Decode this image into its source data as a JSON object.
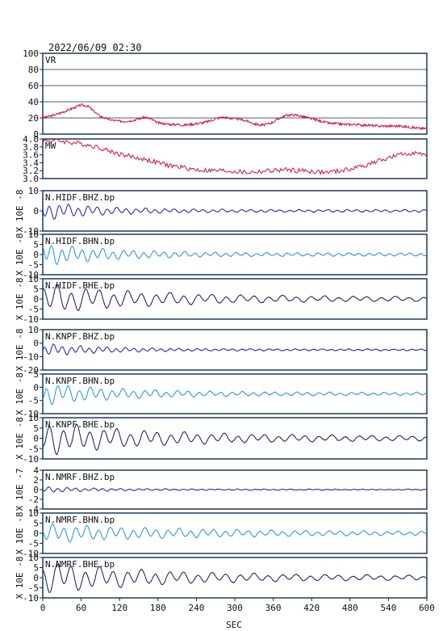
{
  "chart_data": {
    "type": "line",
    "title": "2022/06/09 02:30",
    "xlabel": "SEC",
    "xlim": [
      0,
      600
    ],
    "xticks": [
      "0",
      "60",
      "120",
      "180",
      "240",
      "300",
      "360",
      "420",
      "480",
      "540",
      "600"
    ],
    "colors": {
      "vr": "#d0103a",
      "mw": "#d0103a",
      "bhz": "#1a1aa8",
      "bhn": "#1f8fd6",
      "bhe": "#14145c",
      "frame": "#0b2c4a"
    },
    "panels": [
      {
        "id": "vr",
        "label": "VR",
        "ylabel": "",
        "ylim": [
          0,
          100
        ],
        "yticks": [
          "100",
          "80",
          "60",
          "40",
          "20",
          "0"
        ],
        "grid": true,
        "color": "vr",
        "kind": "vr"
      },
      {
        "id": "mw",
        "label": "MW",
        "ylabel": "",
        "ylim": [
          3.0,
          4.0
        ],
        "yticks": [
          "4.0",
          "3.8",
          "3.6",
          "3.4",
          "3.2",
          "3.0"
        ],
        "grid": false,
        "color": "mw",
        "kind": "mw"
      },
      {
        "id": "hidf_bhz",
        "label": "N.HIDF.BHZ.bp",
        "ylabel": "X 10E -8",
        "yticks": [
          "10",
          "0",
          "-10"
        ],
        "grid": false,
        "color": "bhz",
        "amp": 0.45,
        "decay": 0.011,
        "period": 15,
        "seed": 1
      },
      {
        "id": "hidf_bhn",
        "label": "N.HIDF.BHN.bp",
        "ylabel": "X 10E -8",
        "yticks": [
          "10",
          "5",
          "0",
          "-5",
          "-10"
        ],
        "grid": false,
        "color": "bhn",
        "amp": 0.55,
        "decay": 0.009,
        "period": 16,
        "seed": 2
      },
      {
        "id": "hidf_bhe",
        "label": "N.HIDF.BHE.bp",
        "ylabel": "X 10E -8",
        "yticks": [
          "10",
          "5",
          "0",
          "-5",
          "-10"
        ],
        "grid": false,
        "color": "bhe",
        "amp": 0.75,
        "decay": 0.006,
        "period": 22,
        "seed": 3
      },
      {
        "id": "knpf_bhz",
        "label": "N.KNPF.BHZ.bp",
        "ylabel": "X 10E -8",
        "yticks": [
          "10",
          "0",
          "-10",
          "-20"
        ],
        "grid": false,
        "color": "bhz",
        "amp": 0.3,
        "decay": 0.01,
        "period": 14,
        "seed": 4
      },
      {
        "id": "knpf_bhn",
        "label": "N.KNPF.BHN.bp",
        "ylabel": "X 10E -8",
        "yticks": [
          "5",
          "0",
          "-5",
          "-10"
        ],
        "grid": false,
        "color": "bhn",
        "amp": 0.55,
        "decay": 0.008,
        "period": 17,
        "seed": 5
      },
      {
        "id": "knpf_bhe",
        "label": "N.KNPF.BHE.bp",
        "ylabel": "X 10E -8",
        "yticks": [
          "10",
          "5",
          "0",
          "-5",
          "-10"
        ],
        "grid": false,
        "color": "bhe",
        "amp": 0.8,
        "decay": 0.006,
        "period": 21,
        "seed": 6
      },
      {
        "id": "nmrf_bhz",
        "label": "N.NMRF.BHZ.bp",
        "ylabel": "X 10E -7",
        "yticks": [
          "4",
          "2",
          "0",
          "-2",
          "-4"
        ],
        "grid": false,
        "color": "bhz",
        "amp": 0.15,
        "decay": 0.01,
        "period": 14,
        "seed": 7
      },
      {
        "id": "nmrf_bhn",
        "label": "N.NMRF.BHN.bp",
        "ylabel": "X 10E -8",
        "yticks": [
          "10",
          "5",
          "0",
          "-5",
          "-10"
        ],
        "grid": false,
        "color": "bhn",
        "amp": 0.45,
        "decay": 0.004,
        "period": 18,
        "seed": 8
      },
      {
        "id": "nmrf_bhe",
        "label": "N.NMRF.BHE.bp",
        "ylabel": "X 10E -8",
        "yticks": [
          "10",
          "5",
          "0",
          "-5",
          "-10"
        ],
        "grid": false,
        "color": "bhe",
        "amp": 0.8,
        "decay": 0.006,
        "period": 22,
        "seed": 9
      }
    ],
    "vr_values": [
      [
        0,
        20
      ],
      [
        10,
        22
      ],
      [
        20,
        24
      ],
      [
        30,
        27
      ],
      [
        40,
        30
      ],
      [
        50,
        33
      ],
      [
        60,
        36
      ],
      [
        70,
        35
      ],
      [
        80,
        28
      ],
      [
        90,
        22
      ],
      [
        100,
        19
      ],
      [
        110,
        17
      ],
      [
        120,
        16
      ],
      [
        130,
        16
      ],
      [
        140,
        17
      ],
      [
        150,
        19
      ],
      [
        160,
        21
      ],
      [
        170,
        18
      ],
      [
        180,
        14
      ],
      [
        190,
        13
      ],
      [
        200,
        12
      ],
      [
        210,
        12
      ],
      [
        220,
        11
      ],
      [
        230,
        12
      ],
      [
        240,
        13
      ],
      [
        250,
        14
      ],
      [
        260,
        16
      ],
      [
        270,
        19
      ],
      [
        280,
        21
      ],
      [
        290,
        20
      ],
      [
        300,
        19
      ],
      [
        310,
        18
      ],
      [
        320,
        16
      ],
      [
        330,
        13
      ],
      [
        340,
        11
      ],
      [
        350,
        12
      ],
      [
        360,
        15
      ],
      [
        370,
        20
      ],
      [
        380,
        23
      ],
      [
        390,
        24
      ],
      [
        400,
        23
      ],
      [
        410,
        21
      ],
      [
        420,
        19
      ],
      [
        430,
        17
      ],
      [
        440,
        15
      ],
      [
        450,
        13
      ],
      [
        460,
        13
      ],
      [
        470,
        12
      ],
      [
        480,
        12
      ],
      [
        490,
        12
      ],
      [
        500,
        11
      ],
      [
        510,
        11
      ],
      [
        520,
        10
      ],
      [
        530,
        10
      ],
      [
        540,
        10
      ],
      [
        550,
        10
      ],
      [
        560,
        10
      ],
      [
        570,
        9
      ],
      [
        580,
        8
      ],
      [
        590,
        7
      ],
      [
        600,
        7
      ]
    ],
    "mw_values": [
      [
        0,
        3.95
      ],
      [
        20,
        3.97
      ],
      [
        40,
        3.92
      ],
      [
        60,
        3.88
      ],
      [
        80,
        3.82
      ],
      [
        100,
        3.72
      ],
      [
        120,
        3.62
      ],
      [
        140,
        3.55
      ],
      [
        160,
        3.48
      ],
      [
        180,
        3.4
      ],
      [
        200,
        3.32
      ],
      [
        220,
        3.28
      ],
      [
        240,
        3.22
      ],
      [
        260,
        3.2
      ],
      [
        280,
        3.2
      ],
      [
        300,
        3.18
      ],
      [
        320,
        3.15
      ],
      [
        340,
        3.18
      ],
      [
        360,
        3.2
      ],
      [
        380,
        3.22
      ],
      [
        400,
        3.2
      ],
      [
        420,
        3.18
      ],
      [
        440,
        3.15
      ],
      [
        460,
        3.18
      ],
      [
        480,
        3.24
      ],
      [
        500,
        3.32
      ],
      [
        520,
        3.42
      ],
      [
        540,
        3.52
      ],
      [
        560,
        3.6
      ],
      [
        580,
        3.66
      ],
      [
        600,
        3.55
      ]
    ]
  }
}
